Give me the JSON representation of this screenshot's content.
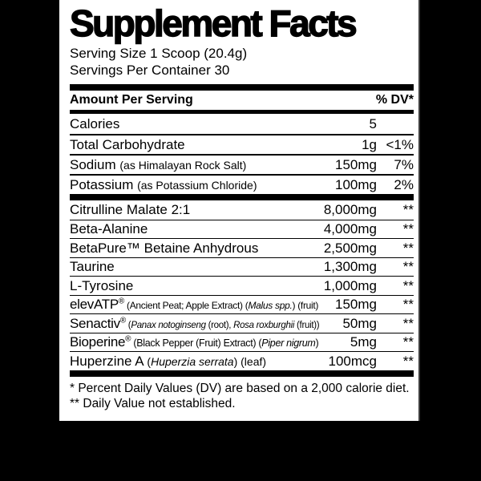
{
  "colors": {
    "background": "#000000",
    "panel": "#ffffff",
    "ink": "#000000",
    "panel_edge": "#3f3f3f"
  },
  "title": "Supplement Facts",
  "serving_info": {
    "serving_size": "Serving Size 1 Scoop (20.4g)",
    "servings_per_container": "Servings Per Container 30"
  },
  "table": {
    "header": {
      "amount_label": "Amount Per Serving",
      "dv_label": "% DV*"
    },
    "nutrients": [
      {
        "name": [
          {
            "t": "Calories"
          }
        ],
        "amount": "5",
        "dv": ""
      },
      {
        "name": [
          {
            "t": "Total Carbohydrate"
          }
        ],
        "amount": "1g",
        "dv": "<1%"
      },
      {
        "name": [
          {
            "t": "Sodium "
          },
          {
            "t": "(as Himalayan Rock Salt)",
            "small": true
          }
        ],
        "amount": "150mg",
        "dv": "7%"
      },
      {
        "name": [
          {
            "t": "Potassium "
          },
          {
            "t": "(as Potassium Chloride)",
            "small": true
          }
        ],
        "amount": "100mg",
        "dv": "2%"
      }
    ],
    "ingredients": [
      {
        "name": [
          {
            "t": "Citrulline Malate 2:1"
          }
        ],
        "amount": "8,000mg",
        "dv": "**"
      },
      {
        "name": [
          {
            "t": "Beta-Alanine"
          }
        ],
        "amount": "4,000mg",
        "dv": "**"
      },
      {
        "name": [
          {
            "t": "BetaPure™ Betaine Anhydrous"
          }
        ],
        "amount": "2,500mg",
        "dv": "**"
      },
      {
        "name": [
          {
            "t": "Taurine"
          }
        ],
        "amount": "1,300mg",
        "dv": "**"
      },
      {
        "name": [
          {
            "t": "L-Tyrosine"
          }
        ],
        "amount": "1,000mg",
        "dv": "**"
      },
      {
        "name": [
          {
            "t": "elevATP"
          },
          {
            "t": "®",
            "sup": true
          },
          {
            "t": " (Ancient Peat; Apple Extract) (",
            "small": true
          },
          {
            "t": "Malus spp.",
            "small": true,
            "italic": true
          },
          {
            "t": ") (fruit)",
            "small": true
          }
        ],
        "amount": "150mg",
        "dv": "**"
      },
      {
        "name": [
          {
            "t": "Senactiv"
          },
          {
            "t": "®",
            "sup": true
          },
          {
            "t": " (",
            "small": true
          },
          {
            "t": "Panax notoginseng",
            "small": true,
            "italic": true
          },
          {
            "t": " (root), ",
            "small": true
          },
          {
            "t": "Rosa roxburghii",
            "small": true,
            "italic": true
          },
          {
            "t": " (fruit))",
            "small": true
          }
        ],
        "amount": "50mg",
        "dv": "**"
      },
      {
        "name": [
          {
            "t": "Bioperine"
          },
          {
            "t": "®",
            "sup": true
          },
          {
            "t": " (Black Pepper (Fruit) Extract) (",
            "small": true
          },
          {
            "t": "Piper nigrum",
            "small": true,
            "italic": true
          },
          {
            "t": ")",
            "small": true
          }
        ],
        "amount": "5mg",
        "dv": "**"
      },
      {
        "name": [
          {
            "t": "Huperzine A "
          },
          {
            "t": "(",
            "small": true
          },
          {
            "t": "Huperzia serrata",
            "small": true,
            "italic": true
          },
          {
            "t": ") (leaf)",
            "small": true
          }
        ],
        "amount": "100mcg",
        "dv": "**"
      }
    ]
  },
  "footnotes": [
    "* Percent Daily Values (DV) are based on a 2,000 calorie diet.",
    "** Daily Value not established."
  ]
}
